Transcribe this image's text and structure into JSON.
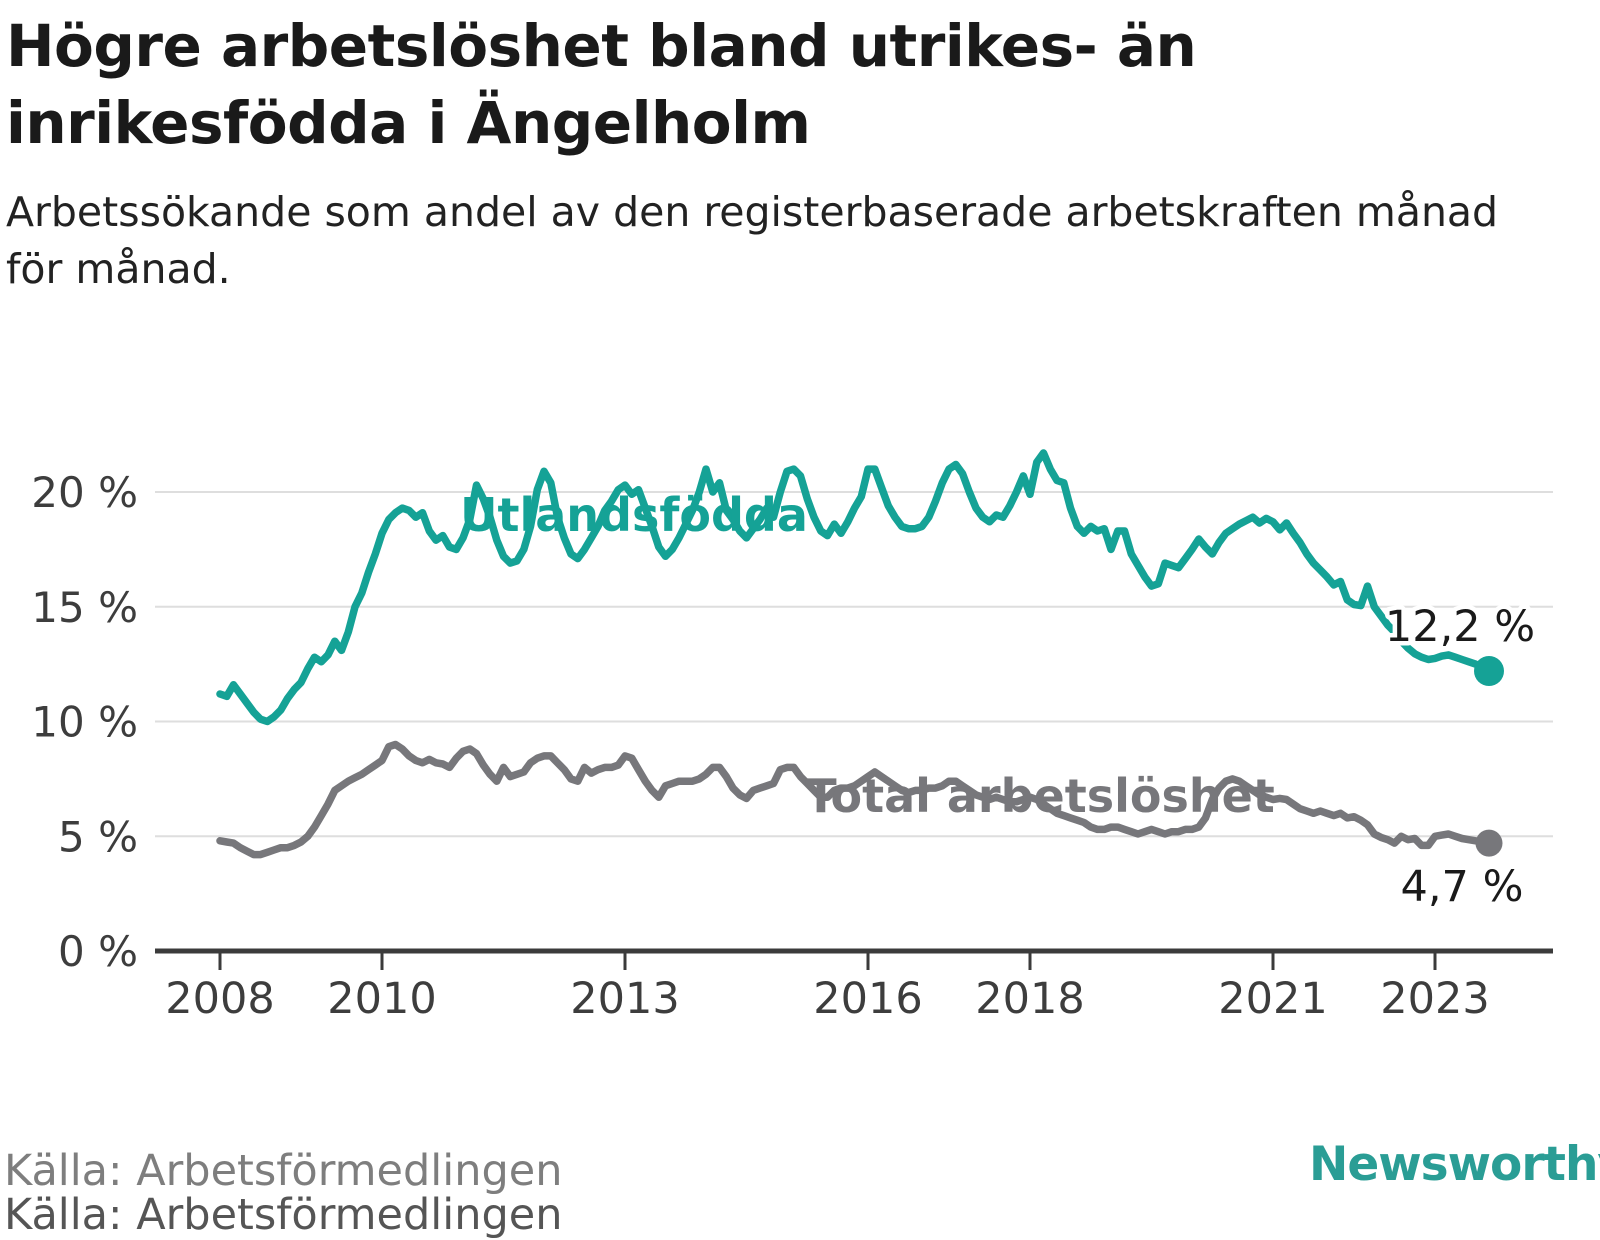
{
  "header": {
    "title_lines": [
      "Högre arbetslöshet bland utrikes- än",
      "inrikesfödda i Ängelholm"
    ],
    "subtitle_lines": [
      "Arbetssökande som andel av den registerbaserade arbetskraften månad",
      "för månad."
    ]
  },
  "footer": {
    "source": "Källa: Arbetsförmedlingen",
    "source_echo": "Källa: Arbetsförmedlingen",
    "brand_name": "Newsworthy"
  },
  "colors": {
    "accent_teal": "#15a296",
    "line_gray": "#77777b",
    "gridline": "#dedede",
    "axis": "#3b3b3b",
    "tick_label": "#3d3d3d",
    "end_label": "#1a1a1a",
    "brand_teal": "#2a9d95"
  },
  "chart_data": {
    "type": "line",
    "x_start": "2008-01",
    "x_end": "2023-09",
    "x_resolution": "monthly",
    "x_tick_years": [
      "2008",
      "2010",
      "2013",
      "2016",
      "2018",
      "2021",
      "2023"
    ],
    "y_ticks": [
      {
        "value": 20,
        "label": "20 %"
      },
      {
        "value": 15,
        "label": "15 %"
      },
      {
        "value": 10,
        "label": "10 %"
      },
      {
        "value": 5,
        "label": "5 %"
      },
      {
        "value": 0,
        "label": "0 %"
      }
    ],
    "ylim": [
      0,
      22.6
    ],
    "grid": "horizontal-only",
    "legend_position": "inline-labels-on-lines",
    "series": [
      {
        "name": "Utlandsfödda",
        "color": "#15a296",
        "end_value_label": "12,2 %",
        "last_value": 12.2,
        "values": [
          11.2,
          11.1,
          11.6,
          11.2,
          10.8,
          10.4,
          10.1,
          10.0,
          10.2,
          10.5,
          11.0,
          11.4,
          11.7,
          12.3,
          12.8,
          12.6,
          12.9,
          13.5,
          13.1,
          13.9,
          15.0,
          15.6,
          16.5,
          17.3,
          18.2,
          18.8,
          19.1,
          19.3,
          19.2,
          18.9,
          19.1,
          18.3,
          17.9,
          18.1,
          17.6,
          17.5,
          18.0,
          18.8,
          20.3,
          19.7,
          18.9,
          17.9,
          17.2,
          16.9,
          17.0,
          17.5,
          18.5,
          20.1,
          20.9,
          20.4,
          18.9,
          18.0,
          17.3,
          17.1,
          17.5,
          18.0,
          18.5,
          19.2,
          19.6,
          20.1,
          20.3,
          19.9,
          20.1,
          19.3,
          18.5,
          17.6,
          17.2,
          17.5,
          18.0,
          18.6,
          19.2,
          20.0,
          21.0,
          20.0,
          20.4,
          19.2,
          18.8,
          18.3,
          18.0,
          18.4,
          18.8,
          19.3,
          18.9,
          20.0,
          20.9,
          21.0,
          20.7,
          19.7,
          18.9,
          18.3,
          18.1,
          18.6,
          18.2,
          18.7,
          19.3,
          19.8,
          21.0,
          21.0,
          20.2,
          19.4,
          18.9,
          18.5,
          18.4,
          18.4,
          18.5,
          18.9,
          19.6,
          20.4,
          21.0,
          21.2,
          20.8,
          20.0,
          19.3,
          18.9,
          18.7,
          19.0,
          18.9,
          19.4,
          20.0,
          20.7,
          19.9,
          21.3,
          21.7,
          21.0,
          20.5,
          20.4,
          19.3,
          18.5,
          18.2,
          18.5,
          18.3,
          18.4,
          17.5,
          18.3,
          18.3,
          17.3,
          16.8,
          16.3,
          15.9,
          16.0,
          16.9,
          16.8,
          16.7,
          17.1,
          17.5,
          17.95,
          17.6,
          17.3,
          17.8,
          18.2,
          18.4,
          18.6,
          18.75,
          18.9,
          18.65,
          18.85,
          18.7,
          18.35,
          18.65,
          18.2,
          17.8,
          17.3,
          16.9,
          16.6,
          16.3,
          15.95,
          16.1,
          15.3,
          15.1,
          15.05,
          15.9,
          15.0,
          14.6,
          14.2,
          13.9,
          13.5,
          13.2,
          12.95,
          12.8,
          12.7,
          12.75,
          12.85,
          12.9,
          12.8,
          12.7,
          12.6,
          12.5,
          12.35,
          12.2
        ]
      },
      {
        "name": "Total arbetslöshet",
        "color": "#77777b",
        "end_value_label": "4,7 %",
        "last_value": 4.7,
        "values": [
          4.8,
          4.75,
          4.7,
          4.5,
          4.35,
          4.2,
          4.2,
          4.3,
          4.4,
          4.5,
          4.5,
          4.6,
          4.75,
          5.0,
          5.4,
          5.9,
          6.4,
          7.0,
          7.2,
          7.4,
          7.55,
          7.7,
          7.9,
          8.1,
          8.3,
          8.9,
          9.0,
          8.8,
          8.5,
          8.3,
          8.2,
          8.35,
          8.2,
          8.15,
          8.0,
          8.4,
          8.7,
          8.8,
          8.6,
          8.1,
          7.7,
          7.4,
          8.0,
          7.6,
          7.7,
          7.8,
          8.2,
          8.4,
          8.5,
          8.5,
          8.2,
          7.9,
          7.5,
          7.4,
          8.0,
          7.75,
          7.9,
          8.0,
          8.0,
          8.1,
          8.5,
          8.4,
          7.9,
          7.4,
          7.0,
          6.7,
          7.2,
          7.3,
          7.4,
          7.4,
          7.4,
          7.5,
          7.7,
          8.0,
          8.0,
          7.6,
          7.1,
          6.8,
          6.65,
          7.0,
          7.1,
          7.2,
          7.3,
          7.9,
          8.0,
          8.0,
          7.6,
          7.3,
          7.0,
          6.7,
          6.7,
          7.0,
          7.1,
          7.1,
          7.2,
          7.4,
          7.6,
          7.8,
          7.6,
          7.4,
          7.2,
          7.0,
          6.9,
          7.0,
          7.0,
          7.1,
          7.1,
          7.2,
          7.4,
          7.4,
          7.2,
          7.0,
          6.8,
          6.7,
          6.6,
          6.7,
          6.6,
          6.5,
          6.5,
          6.6,
          6.7,
          6.6,
          6.4,
          6.2,
          6.0,
          5.9,
          5.8,
          5.7,
          5.6,
          5.4,
          5.3,
          5.3,
          5.4,
          5.4,
          5.3,
          5.2,
          5.1,
          5.2,
          5.3,
          5.2,
          5.1,
          5.2,
          5.2,
          5.3,
          5.3,
          5.4,
          5.8,
          6.6,
          7.1,
          7.4,
          7.5,
          7.4,
          7.2,
          7.0,
          6.8,
          6.7,
          6.6,
          6.65,
          6.6,
          6.4,
          6.2,
          6.1,
          6.0,
          6.1,
          6.0,
          5.9,
          6.0,
          5.8,
          5.85,
          5.7,
          5.5,
          5.1,
          4.95,
          4.85,
          4.7,
          5.0,
          4.85,
          4.9,
          4.6,
          4.6,
          5.0,
          5.05,
          5.1,
          5.0,
          4.9,
          4.85,
          4.8,
          4.75,
          4.7
        ]
      }
    ]
  }
}
